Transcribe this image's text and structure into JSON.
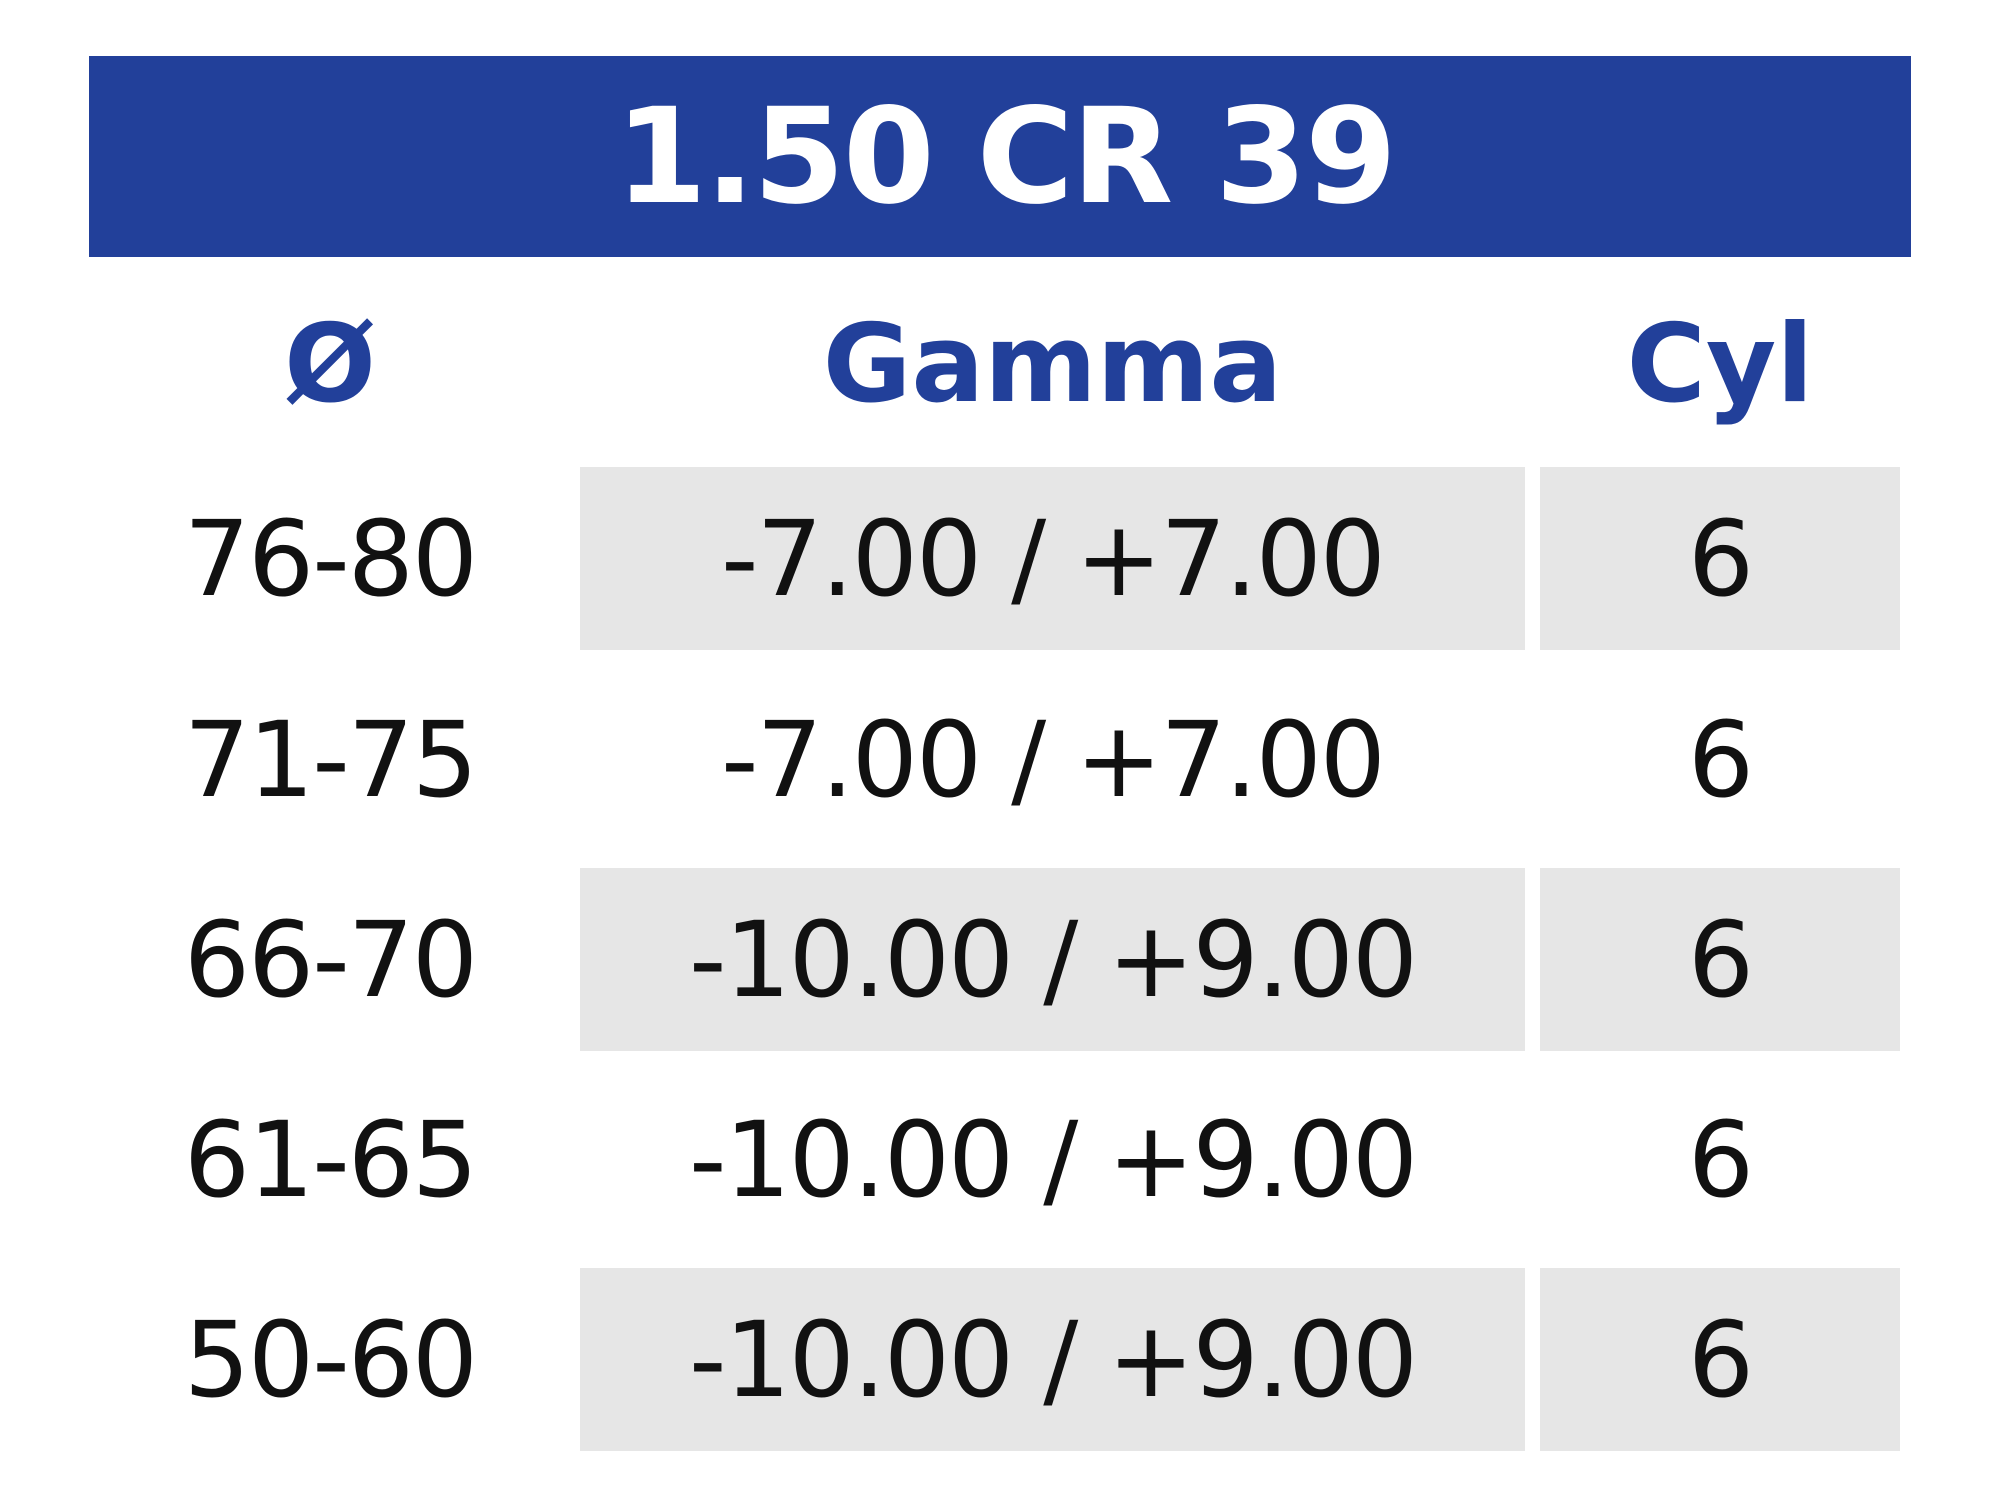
{
  "title": "1.50 CR 39",
  "headers": {
    "diameter": "Ø",
    "gamma": "Gamma",
    "cyl": "Cyl"
  },
  "rows": [
    {
      "diameter": "76-80",
      "gamma": "-7.00 / +7.00",
      "cyl": "6",
      "shaded": true
    },
    {
      "diameter": "71-75",
      "gamma": "-7.00 / +7.00",
      "cyl": "6",
      "shaded": false
    },
    {
      "diameter": "66-70",
      "gamma": "-10.00 / +9.00",
      "cyl": "6",
      "shaded": true
    },
    {
      "diameter": "61-65",
      "gamma": "-10.00 / +9.00",
      "cyl": "6",
      "shaded": false
    },
    {
      "diameter": "50-60",
      "gamma": "-10.00 / +9.00",
      "cyl": "6",
      "shaded": true
    }
  ],
  "colors": {
    "banner": "#22409a",
    "header_text": "#22409a",
    "shade": "#e6e6e6"
  }
}
